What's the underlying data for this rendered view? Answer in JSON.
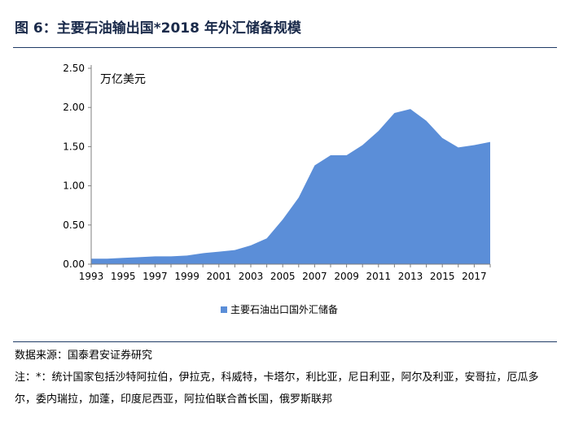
{
  "header": {
    "figure_title": "图 6：主要石油输出国*2018 年外汇储备规模"
  },
  "footer": {
    "source": "数据来源：国泰君安证券研究",
    "note": "注：*：统计国家包括沙特阿拉伯，伊拉克，科威特，卡塔尔，利比亚，尼日利亚，阿尔及利亚，安哥拉，厄瓜多尔，委内瑞拉，加蓬，印度尼西亚，阿拉伯联合酋长国，俄罗斯联邦"
  },
  "colors": {
    "series_fill": "#5b8ed8",
    "axis": "#7f7f7f",
    "rule": "#1f3b66"
  },
  "chart_data": {
    "type": "area",
    "title": "",
    "xlabel": "",
    "ylabel": "万亿美元",
    "unit_label": "万亿美元",
    "x": [
      1993,
      1994,
      1995,
      1996,
      1997,
      1998,
      1999,
      2000,
      2001,
      2002,
      2003,
      2004,
      2005,
      2006,
      2007,
      2008,
      2009,
      2010,
      2011,
      2012,
      2013,
      2014,
      2015,
      2016,
      2017,
      2018
    ],
    "x_tick_labels": [
      "1993",
      "1995",
      "1997",
      "1999",
      "2001",
      "2003",
      "2005",
      "2007",
      "2009",
      "2011",
      "2013",
      "2015",
      "2017"
    ],
    "y_tick_labels": [
      "0.00",
      "0.50",
      "1.00",
      "1.50",
      "2.00",
      "2.50"
    ],
    "ylim": [
      0,
      2.5
    ],
    "grid": false,
    "legend_position": "bottom",
    "series": [
      {
        "name": "主要石油出口国外汇储备",
        "values": [
          0.07,
          0.07,
          0.08,
          0.09,
          0.1,
          0.1,
          0.11,
          0.14,
          0.16,
          0.18,
          0.24,
          0.33,
          0.57,
          0.85,
          1.26,
          1.39,
          1.39,
          1.52,
          1.7,
          1.93,
          1.98,
          1.83,
          1.61,
          1.49,
          1.52,
          1.56
        ]
      }
    ]
  }
}
